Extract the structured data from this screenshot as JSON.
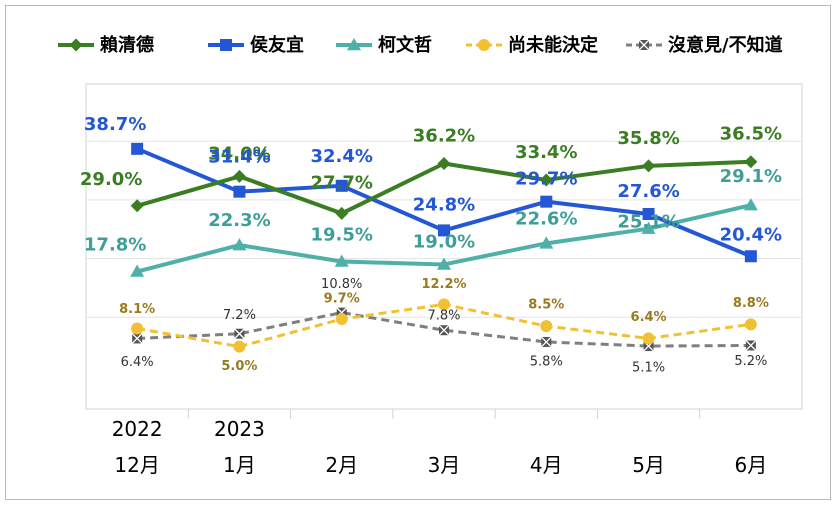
{
  "chart_data": {
    "type": "line",
    "title": "",
    "xlabel": "",
    "ylabel": "",
    "ylim": [
      0,
      50
    ],
    "grid": true,
    "legend_position": "top",
    "x_years": [
      "2022",
      "2023",
      "",
      "",
      "",
      "",
      ""
    ],
    "categories": [
      "12月",
      "1月",
      "2月",
      "3月",
      "4月",
      "5月",
      "6月"
    ],
    "series": [
      {
        "name": "賴清德",
        "color": "#3a7d22",
        "marker": "diamond",
        "dashed": false,
        "values": [
          29.0,
          34.0,
          27.7,
          36.2,
          33.4,
          35.8,
          36.5
        ],
        "labels": [
          "29.0%",
          "34.0%",
          "27.7%",
          "36.2%",
          "33.4%",
          "35.8%",
          "36.5%"
        ]
      },
      {
        "name": "侯友宜",
        "color": "#2457d6",
        "marker": "square",
        "dashed": false,
        "values": [
          38.7,
          31.4,
          32.4,
          24.8,
          29.7,
          27.6,
          20.4
        ],
        "labels": [
          "38.7%",
          "31.4%",
          "32.4%",
          "24.8%",
          "29.7%",
          "27.6%",
          "20.4%"
        ]
      },
      {
        "name": "柯文哲",
        "color": "#4fb0aa",
        "marker": "triangle",
        "dashed": false,
        "values": [
          17.8,
          22.3,
          19.5,
          19.0,
          22.6,
          25.1,
          29.1
        ],
        "labels": [
          "17.8%",
          "22.3%",
          "19.5%",
          "19.0%",
          "22.6%",
          "25.1%",
          "29.1%"
        ]
      },
      {
        "name": "尚未能決定",
        "color": "#f2c033",
        "marker": "circle",
        "dashed": true,
        "values": [
          8.1,
          5.0,
          9.7,
          12.2,
          8.5,
          6.4,
          8.8
        ],
        "labels": [
          "8.1%",
          "5.0%",
          "9.7%",
          "12.2%",
          "8.5%",
          "6.4%",
          "8.8%"
        ]
      },
      {
        "name": "沒意見/不知道",
        "color": "#7f7f7f",
        "marker": "xsquare",
        "dashed": true,
        "values": [
          6.4,
          7.2,
          10.8,
          7.8,
          5.8,
          5.1,
          5.2
        ],
        "labels": [
          "6.4%",
          "7.2%",
          "10.8%",
          "7.8%",
          "5.8%",
          "5.1%",
          "5.2%"
        ]
      }
    ]
  }
}
